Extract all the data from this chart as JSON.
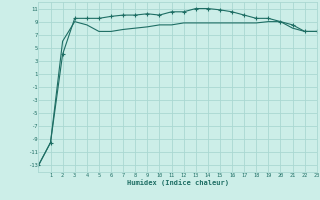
{
  "xlabel": "Humidex (Indice chaleur)",
  "ylabel": "",
  "background_color": "#cceee8",
  "grid_color": "#aad8d2",
  "line_color": "#1e6e64",
  "x_values": [
    0,
    1,
    2,
    3,
    4,
    5,
    6,
    7,
    8,
    9,
    10,
    11,
    12,
    13,
    14,
    15,
    16,
    17,
    18,
    19,
    20,
    21,
    22,
    23
  ],
  "line1_y": [
    -13,
    -9.5,
    4,
    9.5,
    9.5,
    9.5,
    9.8,
    10.0,
    10.0,
    10.2,
    10.0,
    10.5,
    10.5,
    11.0,
    11.0,
    10.8,
    10.5,
    10.0,
    9.5,
    9.5,
    9.0,
    8.5,
    7.5,
    7.5
  ],
  "line2_y": [
    -13,
    -9.5,
    6.0,
    9.0,
    8.5,
    7.5,
    7.5,
    7.8,
    8.0,
    8.2,
    8.5,
    8.5,
    8.8,
    8.8,
    8.8,
    8.8,
    8.8,
    8.8,
    8.8,
    9.0,
    9.0,
    8.0,
    7.5,
    7.5
  ],
  "ylim": [
    -14,
    12
  ],
  "xlim": [
    0,
    23
  ],
  "yticks": [
    -13,
    -11,
    -9,
    -7,
    -5,
    -3,
    -1,
    1,
    3,
    5,
    7,
    9,
    11
  ],
  "xticks": [
    1,
    2,
    3,
    4,
    5,
    6,
    7,
    8,
    9,
    10,
    11,
    12,
    13,
    14,
    15,
    16,
    17,
    18,
    19,
    20,
    21,
    22,
    23
  ],
  "font_color": "#1e6e64",
  "marker": "+"
}
